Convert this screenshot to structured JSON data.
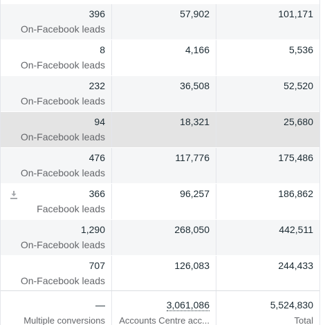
{
  "rows": [
    {
      "results": "396",
      "result_type": "On-Facebook leads",
      "reach": "57,902",
      "impressions": "101,171"
    },
    {
      "results": "8",
      "result_type": "On-Facebook leads",
      "reach": "4,166",
      "impressions": "5,536"
    },
    {
      "results": "232",
      "result_type": "On-Facebook leads",
      "reach": "36,508",
      "impressions": "52,520"
    },
    {
      "results": "94",
      "result_type": "On-Facebook leads",
      "reach": "18,321",
      "impressions": "25,680"
    },
    {
      "results": "476",
      "result_type": "On-Facebook leads",
      "reach": "117,776",
      "impressions": "175,486"
    },
    {
      "results": "366",
      "result_type": "Facebook leads",
      "reach": "96,257",
      "impressions": "186,862",
      "icon": "download-icon"
    },
    {
      "results": "1,290",
      "result_type": "On-Facebook leads",
      "reach": "268,050",
      "impressions": "442,511"
    },
    {
      "results": "707",
      "result_type": "On-Facebook leads",
      "reach": "126,083",
      "impressions": "244,433"
    }
  ],
  "footer": {
    "results": "—",
    "results_label": "Multiple conversions",
    "reach": "3,061,086",
    "reach_label": "Accounts Centre acc...",
    "impressions": "5,524,830",
    "impressions_label": "Total"
  },
  "colors": {
    "stripe": "#f5f6f7",
    "hover": "#e4e4e4",
    "text": "#1c2b33",
    "muted": "#65676b",
    "border": "#e4e6eb"
  }
}
